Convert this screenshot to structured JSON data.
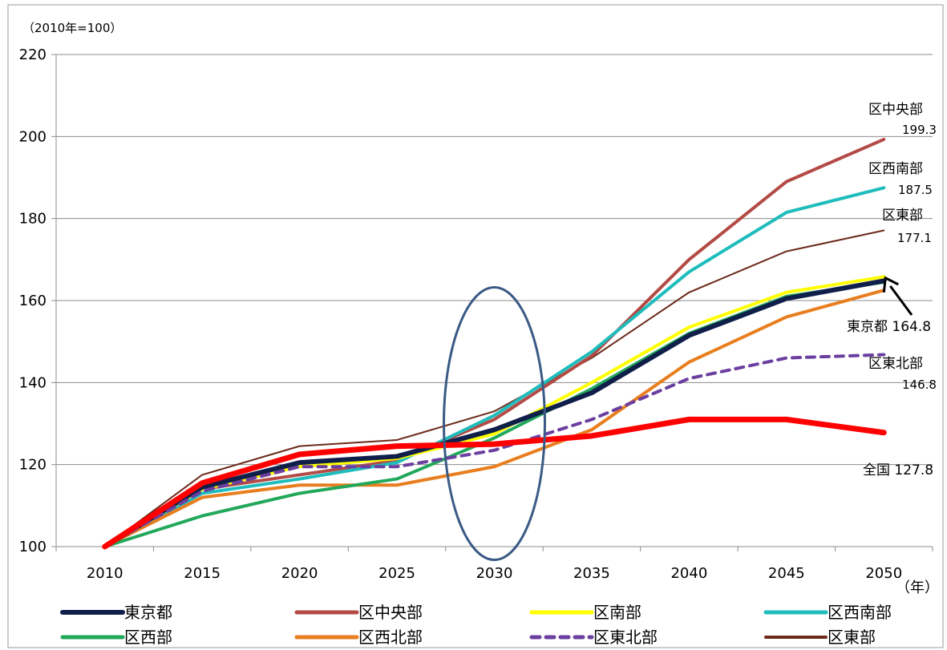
{
  "chart_data": {
    "type": "line",
    "unit_label": "（2010年=100）",
    "x_unit_label": "（年）",
    "x": [
      "2010",
      "2015",
      "2020",
      "2025",
      "2030",
      "2035",
      "2040",
      "2045",
      "2050"
    ],
    "ylim": [
      100,
      220
    ],
    "y_ticks": [
      "100",
      "120",
      "140",
      "160",
      "180",
      "200",
      "220"
    ],
    "grid": "horizontal",
    "legend_position": "bottom",
    "series": [
      {
        "name": "東京都",
        "color": "#0f1f4a",
        "width": 6,
        "dashed": false,
        "values": [
          100,
          114.5,
          120.5,
          122,
          128.5,
          137.5,
          151.5,
          160.5,
          164.8
        ]
      },
      {
        "name": "区中央部",
        "color": "#b34a45",
        "width": 4,
        "dashed": false,
        "values": [
          100,
          114,
          117.5,
          121,
          131,
          146.5,
          170,
          189,
          199.3
        ]
      },
      {
        "name": "区南部",
        "color": "#ffff00",
        "width": 4,
        "dashed": false,
        "values": [
          100,
          114,
          119.5,
          121.5,
          127.5,
          140,
          153.5,
          162,
          165.8
        ]
      },
      {
        "name": "区西南部",
        "color": "#1fbcbc",
        "width": 4,
        "dashed": false,
        "values": [
          100,
          113,
          116.5,
          120.5,
          132,
          147.5,
          167,
          181.5,
          187.5
        ]
      },
      {
        "name": "区西部",
        "color": "#21a85a",
        "width": 4,
        "dashed": false,
        "values": [
          100,
          107.5,
          113,
          116.5,
          126.5,
          138.5,
          152,
          161,
          164.5
        ]
      },
      {
        "name": "区西北部",
        "color": "#e87e1e",
        "width": 4,
        "dashed": false,
        "values": [
          100,
          112,
          115,
          115,
          119.5,
          128.5,
          145,
          156,
          162.5
        ]
      },
      {
        "name": "区東北部",
        "color": "#6b3fa0",
        "width": 4,
        "dashed": true,
        "values": [
          100,
          113.5,
          119.5,
          119.5,
          123.5,
          131,
          141,
          146,
          146.8
        ]
      },
      {
        "name": "区東部",
        "color": "#6b2a1a",
        "width": 2,
        "dashed": false,
        "values": [
          100,
          117.5,
          124.5,
          126,
          133,
          146,
          162,
          172,
          177.1
        ]
      },
      {
        "name": "全国",
        "color": "#ff0000",
        "width": 7,
        "dashed": false,
        "in_legend": false,
        "values": [
          100,
          115.5,
          122.5,
          124.5,
          125,
          127,
          131,
          131,
          127.8
        ]
      }
    ],
    "annotations": [
      {
        "label": "区中央部",
        "value": "199.3"
      },
      {
        "label": "区西南部",
        "value": "187.5"
      },
      {
        "label": "区東部",
        "value": "177.1"
      },
      {
        "label": "東京都",
        "value": "164.8"
      },
      {
        "label": "区東北部",
        "value": "146.8"
      },
      {
        "label": "全国",
        "value": "127.8"
      }
    ],
    "highlight_ellipse_color": "#3a5a85",
    "highlight_year": "2030",
    "arrow_color": "#000000"
  }
}
